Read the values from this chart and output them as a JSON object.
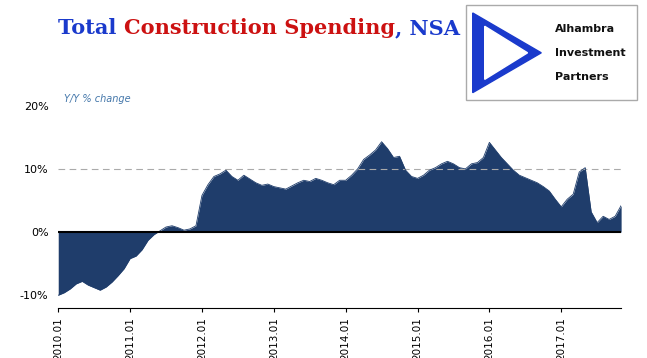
{
  "title_part1": "Total ",
  "title_part2": "Construction Spending",
  "title_part3": ", NSA",
  "title_color1": "#1a3acc",
  "title_color2": "#cc1111",
  "title_color3": "#1a3acc",
  "subtitle": "Y/Y % change",
  "subtitle_color": "#4477aa",
  "fill_color": "#1f3d6b",
  "background_color": "#ffffff",
  "dashed_line_color": "#aaaaaa",
  "zero_line_color": "#000000",
  "ylim": [
    -0.12,
    0.22
  ],
  "yticks": [
    -0.1,
    0.0,
    0.1,
    0.2
  ],
  "ytick_labels": [
    "-10%",
    "0%",
    "10%",
    "20%"
  ],
  "y_values": [
    -0.1,
    -0.096,
    -0.09,
    -0.082,
    -0.078,
    -0.084,
    -0.088,
    -0.092,
    -0.087,
    -0.079,
    -0.069,
    -0.058,
    -0.042,
    -0.038,
    -0.028,
    -0.013,
    -0.004,
    0.002,
    0.008,
    0.01,
    0.007,
    0.003,
    0.005,
    0.01,
    0.058,
    0.075,
    0.088,
    0.092,
    0.098,
    0.088,
    0.082,
    0.09,
    0.084,
    0.078,
    0.074,
    0.076,
    0.072,
    0.07,
    0.068,
    0.073,
    0.078,
    0.082,
    0.08,
    0.085,
    0.082,
    0.078,
    0.075,
    0.082,
    0.082,
    0.09,
    0.1,
    0.115,
    0.122,
    0.13,
    0.143,
    0.132,
    0.118,
    0.12,
    0.098,
    0.088,
    0.085,
    0.09,
    0.098,
    0.102,
    0.108,
    0.112,
    0.108,
    0.102,
    0.1,
    0.108,
    0.11,
    0.118,
    0.142,
    0.13,
    0.118,
    0.108,
    0.098,
    0.09,
    0.086,
    0.082,
    0.078,
    0.072,
    0.065,
    0.052,
    0.04,
    0.052,
    0.06,
    0.095,
    0.102,
    0.032,
    0.015,
    0.025,
    0.02,
    0.025,
    0.042
  ],
  "xtick_positions": [
    0,
    12,
    24,
    36,
    48,
    60,
    72,
    84
  ],
  "xtick_labels": [
    "2010.01",
    "2011.01",
    "2012.01",
    "2013.01",
    "2014.01",
    "2015.01",
    "2016.01",
    "2017.01"
  ],
  "logo_text_line1": "Alhambra",
  "logo_text_line2": "Investment",
  "logo_text_line3": "Partners",
  "title_fontsize": 15,
  "subtitle_fontsize": 7
}
